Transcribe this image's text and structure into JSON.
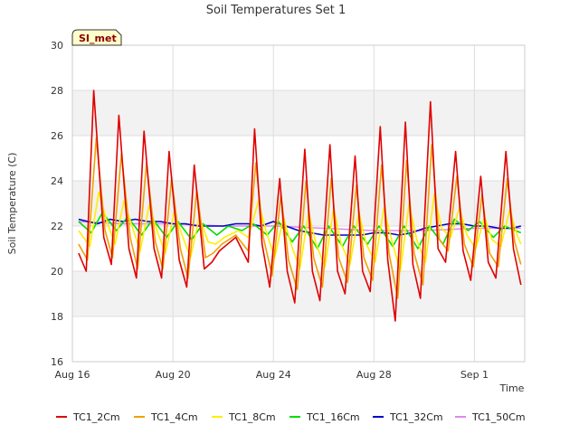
{
  "chart_data": {
    "type": "line",
    "title": "Soil Temperatures Set 1",
    "xlabel": "Time",
    "ylabel": "Soil Temperature (C)",
    "ylim": [
      16,
      30
    ],
    "yticks": [
      16,
      18,
      20,
      22,
      24,
      26,
      28,
      30
    ],
    "xlim": [
      "2024-08-16",
      "2024-09-02"
    ],
    "xticks": [
      "Aug 16",
      "Aug 20",
      "Aug 24",
      "Aug 28",
      "Sep 1"
    ],
    "xtick_days": [
      0,
      4,
      8,
      12,
      16
    ],
    "x_end_day": 18,
    "grid": true,
    "banded_background": true,
    "legend_position": "bottom",
    "site_badge": "SI_met",
    "x_unit_note": "x values are days after Aug 16",
    "series": [
      {
        "name": "TC1_2Cm",
        "color": "#e00000",
        "x": [
          0.25,
          0.55,
          0.85,
          1.25,
          1.55,
          1.85,
          2.25,
          2.55,
          2.85,
          3.25,
          3.55,
          3.85,
          4.25,
          4.55,
          4.85,
          5.25,
          5.55,
          5.85,
          6.5,
          7.0,
          7.25,
          7.55,
          7.85,
          8.25,
          8.55,
          8.85,
          9.25,
          9.55,
          9.85,
          10.25,
          10.55,
          10.85,
          11.25,
          11.55,
          11.85,
          12.25,
          12.55,
          12.85,
          13.25,
          13.55,
          13.85,
          14.25,
          14.55,
          14.85,
          15.25,
          15.55,
          15.85,
          16.25,
          16.55,
          16.85,
          17.25,
          17.55,
          17.85
        ],
        "y": [
          20.8,
          20.0,
          28.0,
          21.5,
          20.3,
          26.9,
          21.0,
          19.7,
          26.2,
          21.0,
          19.7,
          25.3,
          20.5,
          19.3,
          24.7,
          20.1,
          20.4,
          20.9,
          21.5,
          20.4,
          26.3,
          21.2,
          19.3,
          24.1,
          20.0,
          18.6,
          25.4,
          20.0,
          18.7,
          25.6,
          20.0,
          19.0,
          25.1,
          20.0,
          19.1,
          26.4,
          20.5,
          17.8,
          26.6,
          20.3,
          18.8,
          27.5,
          21.0,
          20.4,
          25.3,
          20.9,
          19.6,
          24.2,
          20.4,
          19.7,
          25.3,
          21.0,
          19.4
        ]
      },
      {
        "name": "TC1_4Cm",
        "color": "#f0a000",
        "x": [
          0.25,
          0.6,
          0.95,
          1.3,
          1.6,
          1.95,
          2.3,
          2.6,
          2.95,
          3.3,
          3.6,
          3.95,
          4.3,
          4.6,
          4.95,
          5.3,
          5.6,
          5.95,
          6.5,
          7.0,
          7.3,
          7.6,
          7.95,
          8.3,
          8.6,
          8.95,
          9.3,
          9.6,
          9.95,
          10.3,
          10.6,
          10.95,
          11.3,
          11.6,
          11.95,
          12.3,
          12.6,
          12.95,
          13.3,
          13.6,
          13.95,
          14.3,
          14.6,
          14.95,
          15.3,
          15.6,
          15.95,
          16.3,
          16.6,
          16.95,
          17.3,
          17.6,
          17.85
        ],
        "y": [
          21.2,
          20.5,
          25.9,
          21.8,
          20.6,
          25.2,
          21.5,
          20.1,
          24.8,
          21.3,
          20.1,
          24.1,
          21.0,
          19.7,
          23.6,
          20.6,
          20.8,
          21.2,
          21.6,
          20.9,
          24.8,
          21.5,
          19.8,
          23.4,
          20.5,
          19.2,
          24.0,
          20.6,
          19.3,
          24.1,
          20.6,
          19.5,
          23.8,
          20.6,
          19.6,
          24.7,
          20.8,
          18.8,
          24.9,
          20.8,
          19.4,
          25.6,
          21.4,
          20.9,
          24.2,
          21.2,
          20.2,
          23.4,
          20.8,
          20.2,
          24.1,
          21.3,
          20.3
        ]
      },
      {
        "name": "TC1_8Cm",
        "color": "#ffee00",
        "x": [
          0.25,
          0.7,
          1.05,
          1.4,
          1.7,
          2.05,
          2.4,
          2.7,
          3.05,
          3.4,
          3.7,
          4.05,
          4.4,
          4.7,
          5.05,
          5.4,
          5.7,
          6.05,
          6.6,
          7.0,
          7.4,
          7.7,
          8.05,
          8.4,
          8.7,
          9.05,
          9.4,
          9.7,
          10.05,
          10.4,
          10.7,
          11.05,
          11.4,
          11.7,
          12.05,
          12.4,
          12.7,
          13.05,
          13.4,
          13.7,
          14.05,
          14.4,
          14.7,
          15.05,
          15.4,
          15.7,
          16.05,
          16.4,
          16.7,
          17.05,
          17.4,
          17.7,
          17.85
        ],
        "y": [
          21.8,
          21.1,
          23.5,
          22.1,
          21.2,
          23.1,
          21.9,
          20.9,
          22.9,
          21.7,
          20.8,
          22.6,
          21.5,
          20.6,
          22.4,
          21.3,
          21.2,
          21.5,
          21.8,
          21.5,
          23.1,
          21.8,
          20.6,
          22.4,
          21.2,
          20.1,
          22.6,
          21.2,
          20.2,
          22.8,
          21.2,
          20.3,
          22.6,
          21.2,
          20.4,
          22.8,
          21.4,
          20.0,
          23.0,
          21.4,
          20.4,
          23.4,
          21.9,
          21.5,
          22.8,
          21.6,
          21.0,
          22.4,
          21.4,
          21.1,
          22.7,
          21.6,
          21.2
        ]
      },
      {
        "name": "TC1_16Cm",
        "color": "#00dd00",
        "x": [
          0.25,
          0.75,
          1.2,
          1.75,
          2.2,
          2.75,
          3.2,
          3.75,
          4.2,
          4.75,
          5.2,
          5.75,
          6.2,
          6.75,
          7.2,
          7.75,
          8.2,
          8.75,
          9.2,
          9.75,
          10.2,
          10.75,
          11.2,
          11.75,
          12.2,
          12.75,
          13.2,
          13.75,
          14.2,
          14.75,
          15.2,
          15.75,
          16.2,
          16.75,
          17.2,
          17.85
        ],
        "y": [
          22.2,
          21.7,
          22.6,
          21.8,
          22.4,
          21.6,
          22.3,
          21.5,
          22.2,
          21.4,
          22.1,
          21.6,
          22.0,
          21.8,
          22.1,
          21.6,
          22.2,
          21.3,
          22.0,
          21.0,
          22.0,
          21.1,
          22.0,
          21.2,
          22.0,
          21.1,
          22.0,
          21.0,
          22.0,
          21.2,
          22.3,
          21.8,
          22.2,
          21.5,
          22.0,
          21.7
        ]
      },
      {
        "name": "TC1_32Cm",
        "color": "#0000cc",
        "x": [
          0.25,
          1.0,
          1.5,
          2.0,
          2.5,
          3.0,
          3.5,
          4.0,
          4.5,
          5.0,
          5.5,
          6.0,
          6.5,
          7.0,
          7.5,
          8.0,
          8.5,
          9.0,
          9.5,
          10.0,
          10.5,
          11.0,
          11.5,
          12.0,
          12.5,
          13.0,
          13.5,
          14.0,
          14.5,
          15.0,
          15.5,
          16.0,
          16.5,
          17.0,
          17.5,
          17.85
        ],
        "y": [
          22.3,
          22.1,
          22.3,
          22.2,
          22.3,
          22.2,
          22.2,
          22.1,
          22.1,
          22.0,
          22.0,
          22.0,
          22.1,
          22.1,
          22.0,
          22.2,
          22.0,
          21.8,
          21.7,
          21.6,
          21.6,
          21.6,
          21.6,
          21.7,
          21.7,
          21.6,
          21.7,
          21.9,
          22.0,
          22.1,
          22.1,
          22.0,
          22.0,
          21.9,
          21.9,
          22.0
        ]
      },
      {
        "name": "TC1_50Cm",
        "color": "#dd88ee",
        "x": [
          0.25,
          2.0,
          4.0,
          6.0,
          8.0,
          10.0,
          12.0,
          14.0,
          16.0,
          17.85
        ],
        "y": [
          22.2,
          22.1,
          22.1,
          22.0,
          22.0,
          21.9,
          21.8,
          21.8,
          21.9,
          21.9
        ]
      }
    ]
  }
}
